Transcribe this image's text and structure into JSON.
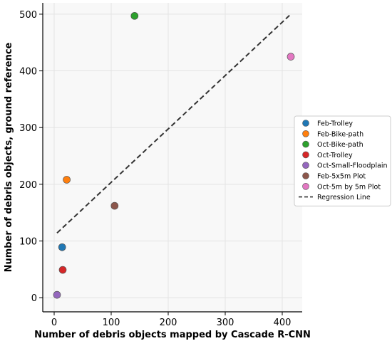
{
  "chart_data": {
    "type": "scatter",
    "xlabel": "Number of debris objects mapped by Cascade R-CNN",
    "ylabel": "Number of debris objects, ground reference",
    "xlim": [
      -20,
      435
    ],
    "ylim": [
      -25,
      520
    ],
    "xticks": [
      0,
      100,
      200,
      300,
      400
    ],
    "yticks": [
      0,
      100,
      200,
      300,
      400,
      500
    ],
    "grid": true,
    "legend_position": "right",
    "series": [
      {
        "name": "Feb-Trolley",
        "x": 14,
        "y": 89,
        "color": "#1f77b4"
      },
      {
        "name": "Feb-Bike-path",
        "x": 22,
        "y": 208,
        "color": "#ff7f0e"
      },
      {
        "name": "Oct-Bike-path",
        "x": 141,
        "y": 497,
        "color": "#2ca02c"
      },
      {
        "name": "Oct-Trolley",
        "x": 15,
        "y": 49,
        "color": "#d62728"
      },
      {
        "name": "Oct-Small-Floodplain",
        "x": 5,
        "y": 5,
        "color": "#9467bd"
      },
      {
        "name": "Feb-5x5m Plot",
        "x": 106,
        "y": 162,
        "color": "#8c564b"
      },
      {
        "name": "Oct-5m by 5m Plot",
        "x": 415,
        "y": 425,
        "color": "#e377c2"
      }
    ],
    "regression_line": {
      "name": "Regression Line",
      "x": [
        5,
        415
      ],
      "y": [
        114,
        500
      ],
      "style": "dashed",
      "color": "#333333"
    }
  }
}
